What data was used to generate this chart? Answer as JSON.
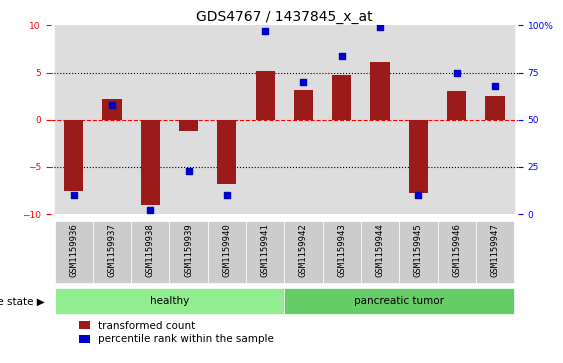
{
  "title": "GDS4767 / 1437845_x_at",
  "categories": [
    "GSM1159936",
    "GSM1159937",
    "GSM1159938",
    "GSM1159939",
    "GSM1159940",
    "GSM1159941",
    "GSM1159942",
    "GSM1159943",
    "GSM1159944",
    "GSM1159945",
    "GSM1159946",
    "GSM1159947"
  ],
  "red_bars": [
    -7.5,
    2.2,
    -9.0,
    -1.2,
    -6.8,
    5.2,
    3.2,
    4.7,
    6.1,
    -7.8,
    3.0,
    2.5
  ],
  "blue_dots_right_axis": [
    10,
    58,
    2,
    23,
    10,
    97,
    70,
    84,
    99,
    10,
    75,
    68
  ],
  "ylim_left": [
    -10,
    10
  ],
  "ylim_right": [
    0,
    100
  ],
  "yticks_left": [
    -10,
    -5,
    0,
    5,
    10
  ],
  "yticks_right": [
    0,
    25,
    50,
    75,
    100
  ],
  "ytick_labels_right": [
    "0",
    "25",
    "50",
    "75",
    "100%"
  ],
  "healthy_range": [
    0,
    5
  ],
  "tumor_range": [
    6,
    11
  ],
  "healthy_label": "healthy",
  "tumor_label": "pancreatic tumor",
  "disease_state_label": "disease state",
  "legend_red": "transformed count",
  "legend_blue": "percentile rank within the sample",
  "bar_color": "#9B1B1B",
  "dot_color": "#0000CC",
  "healthy_box_color": "#90EE90",
  "tumor_box_color": "#66CC66",
  "tick_box_color": "#CCCCCC",
  "plot_bg": "#FFFFFF",
  "bar_width": 0.5,
  "title_fontsize": 10,
  "tick_fontsize": 6.5,
  "label_fontsize": 7.5
}
